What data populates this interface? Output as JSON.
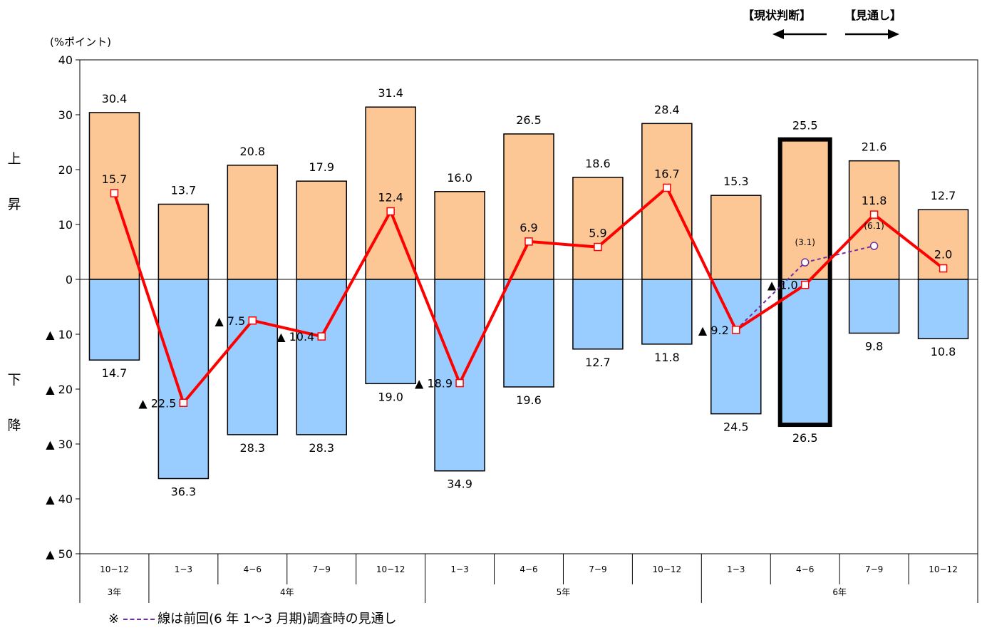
{
  "unit_label": "(%ポイント)",
  "side_labels": {
    "up": [
      "上",
      "昇"
    ],
    "down": [
      "下",
      "降"
    ]
  },
  "header": {
    "current_label": "【現状判断】",
    "outlook_label": "【見通し】"
  },
  "legend_note": {
    "mark": "※",
    "text": "線は前回(6 年 1〜3 月期)調査時の見通し"
  },
  "colors": {
    "up_bar": "#fcc794",
    "down_bar": "#99ccff",
    "net_line": "#ff0000",
    "prev_outlook_line": "#7030a0"
  },
  "chart_data": {
    "type": "bar",
    "ylim": [
      -50,
      40
    ],
    "yticks": [
      {
        "value": 40,
        "label": "40"
      },
      {
        "value": 30,
        "label": "30"
      },
      {
        "value": 20,
        "label": "20"
      },
      {
        "value": 10,
        "label": "10"
      },
      {
        "value": 0,
        "label": "0"
      },
      {
        "value": -10,
        "label": "▲ 10"
      },
      {
        "value": -20,
        "label": "▲ 20"
      },
      {
        "value": -30,
        "label": "▲ 30"
      },
      {
        "value": -40,
        "label": "▲ 40"
      },
      {
        "value": -50,
        "label": "▲ 50"
      }
    ],
    "categories": [
      "10−12",
      "1−3",
      "4−6",
      "7−9",
      "10−12",
      "1−3",
      "4−6",
      "7−9",
      "10−12",
      "1−3",
      "4−6",
      "7−9",
      "10−12"
    ],
    "year_groups": [
      {
        "label": "3年",
        "start": 0,
        "end": 0
      },
      {
        "label": "4年",
        "start": 1,
        "end": 4
      },
      {
        "label": "5年",
        "start": 5,
        "end": 8
      },
      {
        "label": "6年",
        "start": 9,
        "end": 12
      }
    ],
    "up_values": [
      30.4,
      13.7,
      20.8,
      17.9,
      31.4,
      16.0,
      26.5,
      18.6,
      28.4,
      15.3,
      25.5,
      21.6,
      12.7
    ],
    "up_labels": [
      "30.4",
      "13.7",
      "20.8",
      "17.9",
      "31.4",
      "16.0",
      "26.5",
      "18.6",
      "28.4",
      "15.3",
      "25.5",
      "21.6",
      "12.7"
    ],
    "down_values": [
      -14.7,
      -36.3,
      -28.3,
      -28.3,
      -19.0,
      -34.9,
      -19.6,
      -12.7,
      -11.8,
      -24.5,
      -26.5,
      -9.8,
      -10.8
    ],
    "down_labels": [
      "14.7",
      "36.3",
      "28.3",
      "28.3",
      "19.0",
      "34.9",
      "19.6",
      "12.7",
      "11.8",
      "24.5",
      "26.5",
      "9.8",
      "10.8"
    ],
    "net_values": [
      15.7,
      -22.5,
      -7.5,
      -10.4,
      12.4,
      -18.9,
      6.9,
      5.9,
      16.7,
      -9.2,
      -1.0,
      11.8,
      2.0
    ],
    "net_labels": [
      "15.7",
      "▲ 22.5",
      "▲ 7.5",
      "▲ 10.4",
      "12.4",
      "▲ 18.9",
      "6.9",
      "5.9",
      "16.7",
      "▲ 9.2",
      "▲ 1.0",
      "11.8",
      "2.0"
    ],
    "highlight_index": 10,
    "prev_outlook": {
      "indices": [
        9,
        10,
        11
      ],
      "values": [
        -9.2,
        3.1,
        6.1
      ],
      "labels": [
        "",
        "(3.1)",
        "(6.1)"
      ]
    }
  }
}
